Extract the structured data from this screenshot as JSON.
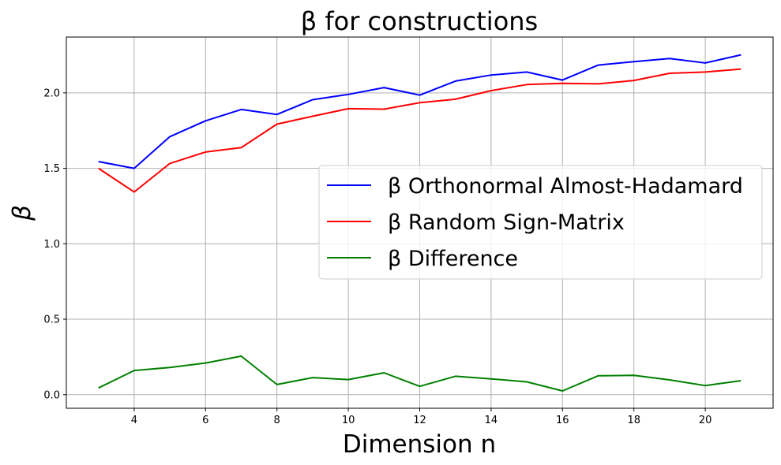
{
  "chart_data": {
    "type": "line",
    "title": "β for constructions",
    "xlabel": "Dimension n",
    "ylabel": "β",
    "xlim": [
      2.1,
      21.9
    ],
    "ylim": [
      -0.09,
      2.37
    ],
    "xticks": [
      4,
      6,
      8,
      10,
      12,
      14,
      16,
      18,
      20
    ],
    "yticks": [
      0.0,
      0.5,
      1.0,
      1.5,
      2.0
    ],
    "xtick_labels": [
      "4",
      "6",
      "8",
      "10",
      "12",
      "14",
      "16",
      "18",
      "20"
    ],
    "ytick_labels": [
      "0.0",
      "0.5",
      "1.0",
      "1.5",
      "2.0"
    ],
    "grid": true,
    "legend_position": "center-right",
    "x": [
      3,
      4,
      5,
      6,
      7,
      8,
      9,
      10,
      11,
      12,
      13,
      14,
      15,
      16,
      17,
      18,
      19,
      20,
      21
    ],
    "series": [
      {
        "name": "β Orthonormal Almost-Hadamard",
        "color": "#0000ff",
        "values": [
          1.545,
          1.5,
          1.71,
          1.815,
          1.89,
          1.857,
          1.955,
          1.99,
          2.035,
          1.985,
          2.078,
          2.118,
          2.138,
          2.085,
          2.184,
          2.207,
          2.228,
          2.198,
          2.252
        ]
      },
      {
        "name": "β Random Sign-Matrix",
        "color": "#ff0000",
        "values": [
          1.5,
          1.343,
          1.532,
          1.608,
          1.637,
          1.793,
          1.845,
          1.895,
          1.892,
          1.935,
          1.958,
          2.015,
          2.055,
          2.063,
          2.06,
          2.082,
          2.13,
          2.138,
          2.158
        ]
      },
      {
        "name": "β Difference",
        "color": "#008000",
        "values": [
          0.045,
          0.16,
          0.18,
          0.21,
          0.255,
          0.067,
          0.113,
          0.1,
          0.145,
          0.055,
          0.122,
          0.105,
          0.085,
          0.025,
          0.125,
          0.128,
          0.098,
          0.06,
          0.093
        ]
      }
    ]
  }
}
